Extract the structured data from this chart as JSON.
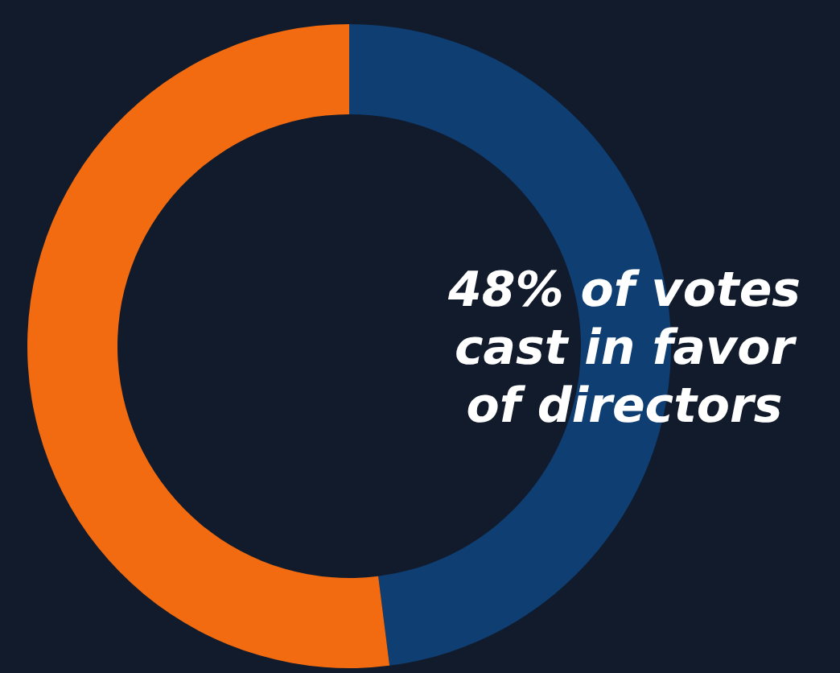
{
  "chart_data": {
    "type": "donut",
    "categories": [
      null,
      null
    ],
    "values": [
      48,
      52
    ],
    "colors": [
      "#0f3e73",
      "#f26b10"
    ],
    "annotations": [
      "48% of votes cast in favor of directors"
    ]
  }
}
